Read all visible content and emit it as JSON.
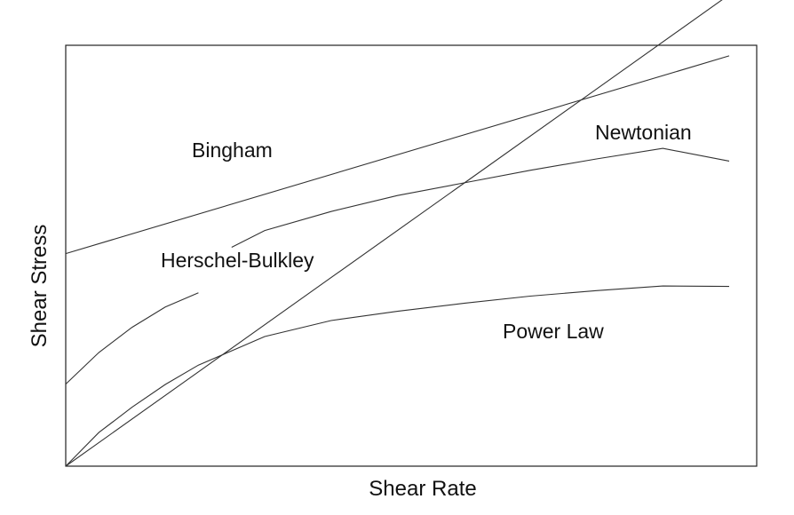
{
  "chart_data": {
    "type": "line",
    "title": "",
    "xlabel": "Shear Rate",
    "ylabel": "Shear Stress",
    "xlim": [
      0,
      100
    ],
    "ylim": [
      0,
      100
    ],
    "grid": false,
    "legend": "none",
    "series": [
      {
        "name": "Bingham",
        "x": [
          0,
          100
        ],
        "y": [
          50.5,
          97.5
        ]
      },
      {
        "name": "Newtonian",
        "x": [
          0,
          20,
          40,
          60,
          80,
          100
        ],
        "y": [
          0,
          22.4,
          44.8,
          67.2,
          89.6,
          112
        ]
      },
      {
        "name": "Herschel-Bulkley",
        "x": [
          0,
          5,
          10,
          15,
          20,
          25,
          30,
          40,
          50,
          60,
          70,
          80,
          90,
          100
        ],
        "y": [
          19.5,
          27,
          33,
          37.8,
          41.2,
          52,
          56,
          60.5,
          64.3,
          67.3,
          70.3,
          73,
          75.5,
          72.5
        ]
      },
      {
        "name": "Power Law",
        "x": [
          0,
          5,
          10,
          15,
          20,
          25,
          30,
          40,
          50,
          60,
          70,
          80,
          90,
          100
        ],
        "y": [
          0,
          8,
          14,
          19.4,
          24,
          27.4,
          30.8,
          34.6,
          36.8,
          38.7,
          40.4,
          41.7,
          42.8,
          42.7
        ]
      }
    ],
    "labels": [
      "Bingham",
      "Newtonian",
      "Herschel-Bulkley",
      "Power Law"
    ]
  }
}
